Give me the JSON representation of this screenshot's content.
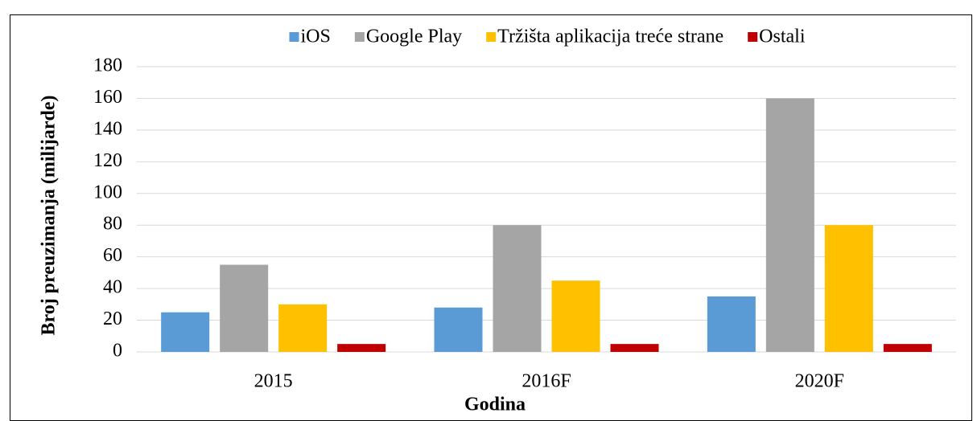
{
  "chart_data": {
    "type": "bar",
    "x_label": "Godina",
    "y_label": "Broj preuzimanja (milijarde)",
    "categories": [
      "2015",
      "2016F",
      "2020F"
    ],
    "series": [
      {
        "name": "iOS",
        "color": "#5b9bd5",
        "values": [
          25,
          28,
          35
        ]
      },
      {
        "name": "Google Play",
        "color": "#a5a5a5",
        "values": [
          55,
          80,
          160
        ]
      },
      {
        "name": "Tržišta aplikacija treće strane",
        "color": "#ffc000",
        "values": [
          30,
          45,
          80
        ]
      },
      {
        "name": "Ostali",
        "color": "#c00000",
        "values": [
          5,
          5,
          5
        ]
      }
    ],
    "ylim": [
      0,
      180
    ],
    "yticks": [
      0,
      20,
      40,
      60,
      80,
      100,
      120,
      140,
      160,
      180
    ],
    "grid": true,
    "legend": "top"
  }
}
